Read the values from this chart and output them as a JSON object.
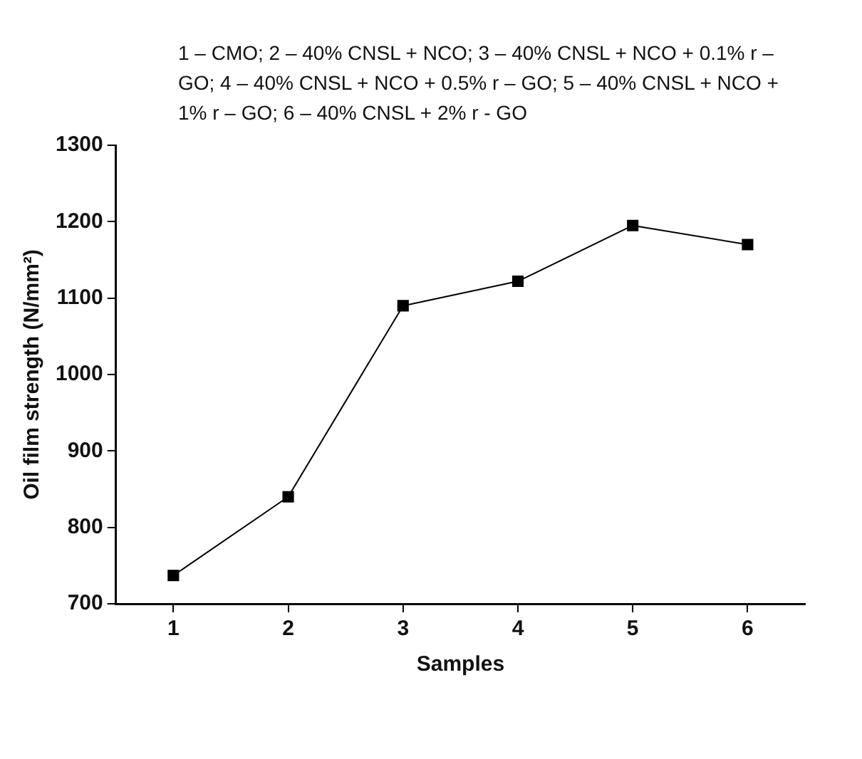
{
  "chart_data": {
    "type": "line",
    "title": "1 – CMO; 2 – 40% CNSL + NCO; 3 – 40% CNSL + NCO + 0.1% r – GO; 4 – 40% CNSL + NCO + 0.5% r – GO; 5 – 40% CNSL + NCO + 1% r – GO; 6 – 40% CNSL + 2% r - GO",
    "xlabel": "Samples",
    "ylabel": "Oil film strength (N/mm²)",
    "x": [
      1,
      2,
      3,
      4,
      5,
      6
    ],
    "series": [
      {
        "color": "#000000",
        "values": [
          737,
          840,
          1090,
          1122,
          1195,
          1170
        ]
      }
    ],
    "xlim": [
      0.5,
      6.5
    ],
    "xticks": [
      1,
      2,
      3,
      4,
      5,
      6
    ],
    "ylim": [
      700,
      1300
    ],
    "yticks": [
      700,
      800,
      900,
      1000,
      1100,
      1200,
      1300
    ],
    "grid": false,
    "legend": false,
    "marker": "square",
    "line_style": "solid"
  }
}
